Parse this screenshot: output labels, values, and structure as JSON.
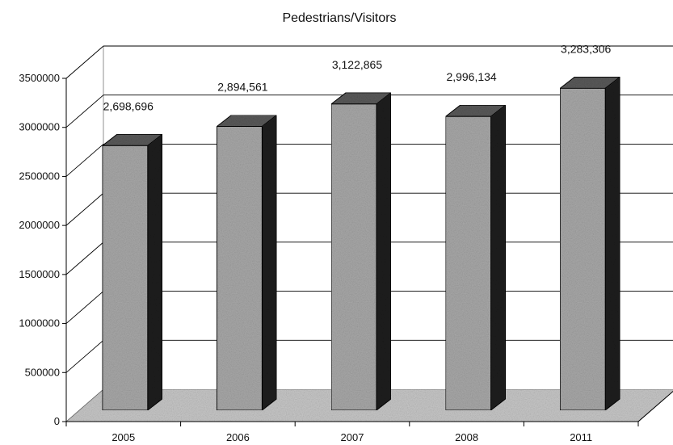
{
  "chart_data": {
    "type": "bar",
    "title": "Pedestrians/Visitors",
    "xlabel": "",
    "ylabel": "",
    "categories": [
      "2005",
      "2006",
      "2007",
      "2008",
      "2011"
    ],
    "values": [
      2698696,
      2894561,
      3122865,
      2996134,
      3283306
    ],
    "data_labels": [
      "2,698,696",
      "2,894,561",
      "3,122,865",
      "2,996,134",
      "3,283,306"
    ],
    "yticks": [
      0,
      500000,
      1000000,
      1500000,
      2000000,
      2500000,
      3000000,
      3500000
    ],
    "ytick_labels": [
      "0",
      "500000",
      "1000000",
      "1500000",
      "2000000",
      "2500000",
      "3000000",
      "3500000"
    ],
    "ylim": [
      0,
      3500000
    ],
    "grid": true,
    "legend": "none",
    "style": "3d-column",
    "colors": {
      "bar_front": "#a9a9a9",
      "bar_top": "#5a5a5a",
      "bar_side": "#1e1e1e",
      "floor": "#c8c8c8",
      "grid": "#000000"
    }
  }
}
